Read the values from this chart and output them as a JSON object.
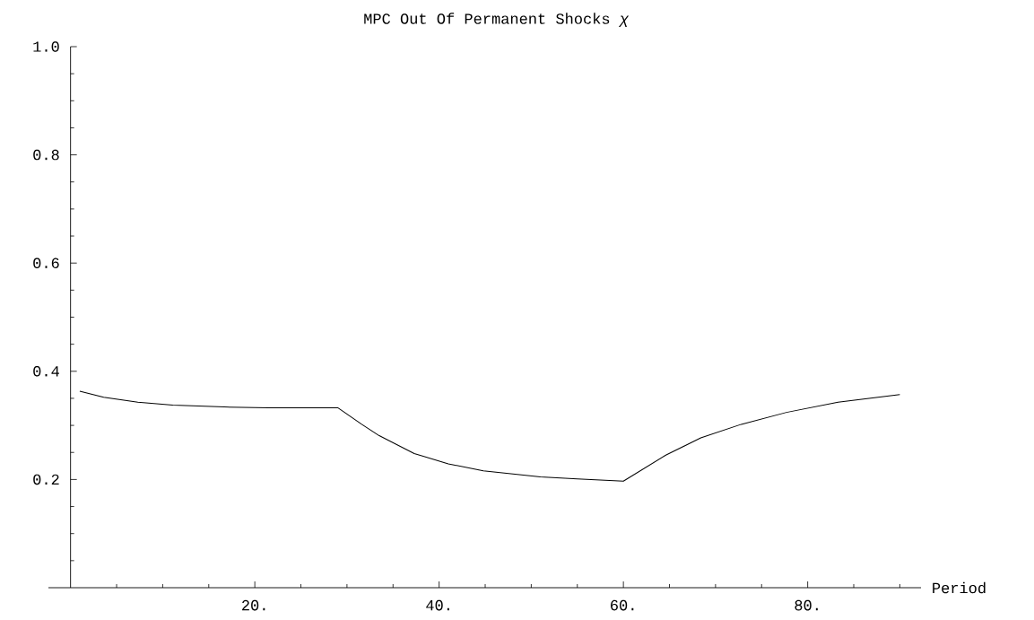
{
  "chart_data": {
    "type": "line",
    "title": "MPC Out Of Permanent Shocks *χ*",
    "xlabel": "Period",
    "x": [
      1,
      3.6,
      7.3,
      11.1,
      16.7,
      21.5,
      29,
      31.6,
      33.5,
      37.3,
      41,
      44.8,
      51,
      55,
      60,
      64.6,
      68.4,
      72.8,
      77.7,
      83.3,
      90
    ],
    "series": [
      {
        "color": "#000000",
        "values": [
          0.363,
          0.352,
          0.343,
          0.3375,
          0.334,
          0.3326,
          0.3326,
          0.302,
          0.281,
          0.248,
          0.229,
          0.216,
          0.205,
          0.201,
          0.197,
          0.245,
          0.277,
          0.302,
          0.324,
          0.343,
          0.357
        ]
      }
    ],
    "xlim": [
      -2.4,
      92.3
    ],
    "ylim": [
      0,
      1.0
    ],
    "xticks": [
      {
        "value": 5,
        "label": null
      },
      {
        "value": 10,
        "label": null
      },
      {
        "value": 15,
        "label": null
      },
      {
        "value": 20,
        "label": "20."
      },
      {
        "value": 25,
        "label": null
      },
      {
        "value": 30,
        "label": null
      },
      {
        "value": 35,
        "label": null
      },
      {
        "value": 40,
        "label": "40."
      },
      {
        "value": 45,
        "label": null
      },
      {
        "value": 50,
        "label": null
      },
      {
        "value": 55,
        "label": null
      },
      {
        "value": 60,
        "label": "60."
      },
      {
        "value": 65,
        "label": null
      },
      {
        "value": 70,
        "label": null
      },
      {
        "value": 75,
        "label": null
      },
      {
        "value": 80,
        "label": "80."
      },
      {
        "value": 85,
        "label": null
      },
      {
        "value": 90,
        "label": null
      }
    ],
    "yticks": [
      {
        "value": 0.05,
        "label": null
      },
      {
        "value": 0.1,
        "label": null
      },
      {
        "value": 0.15,
        "label": null
      },
      0.2,
      {
        "value": 0.25,
        "label": null
      },
      {
        "value": 0.3,
        "label": null
      },
      {
        "value": 0.35,
        "label": null
      },
      0.4,
      {
        "value": 0.45,
        "label": null
      },
      {
        "value": 0.5,
        "label": null
      },
      {
        "value": 0.55,
        "label": null
      },
      0.6,
      {
        "value": 0.65,
        "label": null
      },
      {
        "value": 0.7,
        "label": null
      },
      {
        "value": 0.75,
        "label": null
      },
      0.8,
      {
        "value": 0.85,
        "label": null
      },
      {
        "value": 0.9,
        "label": null
      },
      {
        "value": 0.95,
        "label": null
      },
      {
        "value": 1.0,
        "label": "1.0"
      }
    ]
  }
}
